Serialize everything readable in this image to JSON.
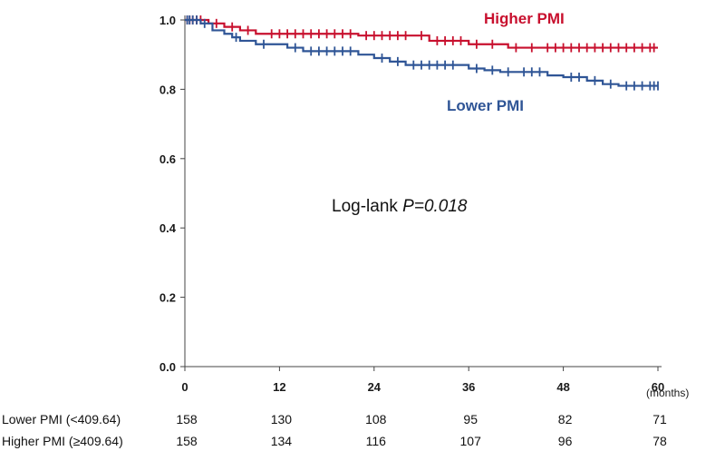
{
  "chart_data": {
    "type": "line",
    "title": "",
    "xlabel": "",
    "ylabel": "",
    "x_units_label": "(months)",
    "xlim": [
      0,
      60
    ],
    "ylim": [
      0.0,
      1.0
    ],
    "x_ticks": [
      "0",
      "12",
      "24",
      "36",
      "48",
      "60"
    ],
    "x_tick_values": [
      0,
      12,
      24,
      36,
      48,
      60
    ],
    "y_ticks": [
      "0.0",
      "0.2",
      "0.4",
      "0.6",
      "0.8",
      "1.0"
    ],
    "y_tick_values": [
      0.0,
      0.2,
      0.4,
      0.6,
      0.8,
      1.0
    ],
    "grid": false,
    "series": [
      {
        "name": "Higher PMI",
        "color": "#c8102e",
        "steps": [
          [
            0,
            1.0
          ],
          [
            3,
            0.99
          ],
          [
            5,
            0.98
          ],
          [
            7,
            0.97
          ],
          [
            9,
            0.96
          ],
          [
            22,
            0.955
          ],
          [
            31,
            0.94
          ],
          [
            36,
            0.93
          ],
          [
            41,
            0.92
          ],
          [
            60,
            0.92
          ]
        ],
        "censored": [
          0.3,
          0.6,
          1,
          1.5,
          2,
          4,
          6,
          8,
          11,
          12,
          13,
          14,
          15,
          16,
          17,
          18,
          19,
          20,
          21,
          23,
          24,
          25,
          26,
          27,
          28,
          30,
          32,
          33,
          34,
          35,
          37,
          39,
          42,
          44,
          46,
          47,
          48,
          49,
          50,
          51,
          52,
          53,
          54,
          55,
          56,
          57,
          58,
          59,
          59.5
        ]
      },
      {
        "name": "Lower PMI",
        "color": "#2f5596",
        "steps": [
          [
            0,
            1.0
          ],
          [
            2,
            0.99
          ],
          [
            3.5,
            0.97
          ],
          [
            5,
            0.96
          ],
          [
            6,
            0.95
          ],
          [
            7,
            0.94
          ],
          [
            9,
            0.93
          ],
          [
            13,
            0.92
          ],
          [
            15,
            0.91
          ],
          [
            22,
            0.9
          ],
          [
            24,
            0.89
          ],
          [
            26,
            0.88
          ],
          [
            28,
            0.87
          ],
          [
            36,
            0.86
          ],
          [
            38,
            0.855
          ],
          [
            40,
            0.85
          ],
          [
            46,
            0.84
          ],
          [
            48,
            0.835
          ],
          [
            51,
            0.825
          ],
          [
            53,
            0.815
          ],
          [
            55,
            0.81
          ],
          [
            60,
            0.81
          ]
        ],
        "censored": [
          0.3,
          0.6,
          1,
          1.5,
          2.5,
          6.5,
          10,
          14,
          16,
          17,
          18,
          19,
          20,
          21,
          25,
          27,
          29,
          30,
          31,
          32,
          33,
          34,
          37,
          39,
          41,
          43,
          44,
          45,
          49,
          50,
          52,
          54,
          56,
          57,
          58,
          59,
          59.5,
          60
        ]
      }
    ],
    "annotation": {
      "prefix": "Log-lank ",
      "p_text": "P=0.018"
    },
    "risk_table": [
      {
        "label": "Lower PMI (<409.64)",
        "counts": [
          "158",
          "130",
          "108",
          "95",
          "82",
          "71"
        ]
      },
      {
        "label": "Higher PMI (≥409.64)",
        "counts": [
          "158",
          "134",
          "116",
          "107",
          "96",
          "78"
        ]
      }
    ]
  }
}
